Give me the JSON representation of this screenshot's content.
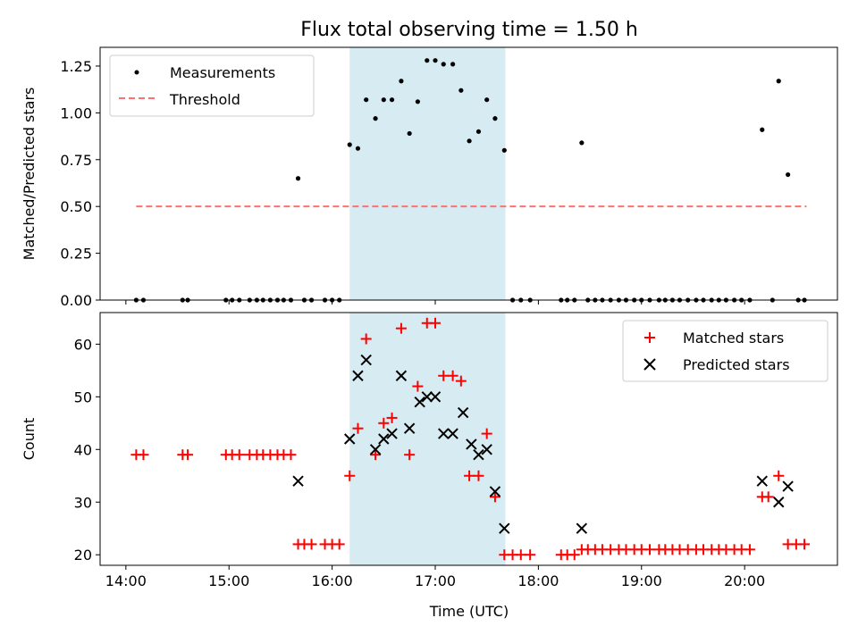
{
  "chart_data": {
    "title": "Flux total observing time = 1.50 h",
    "xlabel": "Time (UTC)",
    "xlim": [
      13.75,
      20.9
    ],
    "xticks": [
      14,
      15,
      16,
      17,
      18,
      19,
      20
    ],
    "xtick_labels": [
      "14:00",
      "15:00",
      "16:00",
      "17:00",
      "18:00",
      "19:00",
      "20:00"
    ],
    "highlight_span": [
      16.17,
      17.68
    ],
    "charts": [
      {
        "type": "scatter",
        "ylabel": "Matched/Predicted stars",
        "ylim": [
          0,
          1.35
        ],
        "yticks": [
          0.0,
          0.25,
          0.5,
          0.75,
          1.0,
          1.25
        ],
        "ytick_labels": [
          "0.00",
          "0.25",
          "0.50",
          "0.75",
          "1.00",
          "1.25"
        ],
        "legend": {
          "position": "top-left",
          "entries": [
            "Measurements",
            "Threshold"
          ]
        },
        "threshold": {
          "name": "Threshold",
          "value": 0.5,
          "x_range": [
            14.1,
            20.6
          ],
          "color": "#ff7070"
        },
        "series": [
          {
            "name": "Measurements",
            "color": "#000000",
            "x": [
              14.1,
              14.17,
              14.55,
              14.6,
              14.97,
              15.03,
              15.1,
              15.2,
              15.27,
              15.33,
              15.4,
              15.47,
              15.53,
              15.6,
              15.67,
              15.73,
              15.8,
              15.93,
              16.0,
              16.07,
              16.17,
              16.25,
              16.33,
              16.42,
              16.5,
              16.58,
              16.67,
              16.75,
              16.83,
              16.92,
              17.0,
              17.08,
              17.17,
              17.25,
              17.33,
              17.42,
              17.5,
              17.58,
              17.67,
              17.75,
              17.83,
              17.92,
              18.22,
              18.28,
              18.35,
              18.42,
              18.48,
              18.55,
              18.62,
              18.7,
              18.78,
              18.85,
              18.93,
              19.0,
              19.08,
              19.17,
              19.23,
              19.3,
              19.37,
              19.45,
              19.53,
              19.6,
              19.68,
              19.75,
              19.82,
              19.9,
              19.97,
              20.05,
              20.17,
              20.27,
              20.33,
              20.42,
              20.52,
              20.58
            ],
            "y": [
              0,
              0,
              0,
              0,
              0,
              0,
              0,
              0,
              0,
              0,
              0,
              0,
              0,
              0,
              0.65,
              0,
              0,
              0,
              0,
              0,
              0.83,
              0.81,
              1.07,
              0.97,
              1.07,
              1.07,
              1.17,
              0.89,
              1.06,
              1.28,
              1.28,
              1.26,
              1.26,
              1.12,
              0.85,
              0.9,
              1.07,
              0.97,
              0.8,
              0,
              0,
              0,
              0,
              0,
              0,
              0.84,
              0,
              0,
              0,
              0,
              0,
              0,
              0,
              0,
              0,
              0,
              0,
              0,
              0,
              0,
              0,
              0,
              0,
              0,
              0,
              0,
              0,
              0,
              0.91,
              0,
              1.17,
              0.67,
              0,
              0
            ]
          }
        ]
      },
      {
        "type": "scatter",
        "ylabel": "Count",
        "ylim": [
          18,
          66
        ],
        "yticks": [
          20,
          30,
          40,
          50,
          60
        ],
        "ytick_labels": [
          "20",
          "30",
          "40",
          "50",
          "60"
        ],
        "legend": {
          "position": "top-right",
          "entries": [
            "Matched stars",
            "Predicted stars"
          ]
        },
        "series": [
          {
            "name": "Matched stars",
            "marker": "plus",
            "color": "#ff0000",
            "x": [
              14.1,
              14.17,
              14.55,
              14.6,
              14.97,
              15.03,
              15.1,
              15.2,
              15.27,
              15.33,
              15.4,
              15.47,
              15.53,
              15.6,
              15.67,
              15.73,
              15.8,
              15.93,
              16.0,
              16.07,
              16.17,
              16.25,
              16.33,
              16.42,
              16.5,
              16.58,
              16.67,
              16.75,
              16.83,
              16.92,
              17.0,
              17.08,
              17.17,
              17.25,
              17.33,
              17.42,
              17.5,
              17.58,
              17.67,
              17.75,
              17.83,
              17.92,
              18.22,
              18.28,
              18.35,
              18.42,
              18.48,
              18.55,
              18.62,
              18.7,
              18.78,
              18.85,
              18.93,
              19.0,
              19.08,
              19.17,
              19.23,
              19.3,
              19.37,
              19.45,
              19.53,
              19.6,
              19.68,
              19.75,
              19.82,
              19.9,
              19.97,
              20.05,
              20.17,
              20.23,
              20.33,
              20.42,
              20.5,
              20.58
            ],
            "y": [
              39,
              39,
              39,
              39,
              39,
              39,
              39,
              39,
              39,
              39,
              39,
              39,
              39,
              39,
              22,
              22,
              22,
              22,
              22,
              22,
              35,
              44,
              61,
              39,
              45,
              46,
              63,
              39,
              52,
              64,
              64,
              54,
              54,
              53,
              35,
              35,
              43,
              31,
              20,
              20,
              20,
              20,
              20,
              20,
              20,
              21,
              21,
              21,
              21,
              21,
              21,
              21,
              21,
              21,
              21,
              21,
              21,
              21,
              21,
              21,
              21,
              21,
              21,
              21,
              21,
              21,
              21,
              21,
              31,
              31,
              35,
              22,
              22,
              22
            ]
          },
          {
            "name": "Predicted stars",
            "marker": "x",
            "color": "#000000",
            "x": [
              15.67,
              16.17,
              16.25,
              16.33,
              16.42,
              16.5,
              16.58,
              16.67,
              16.75,
              16.85,
              16.92,
              17.0,
              17.08,
              17.17,
              17.27,
              17.35,
              17.42,
              17.5,
              17.58,
              17.67,
              18.42,
              20.17,
              20.33,
              20.42
            ],
            "y": [
              34,
              42,
              54,
              57,
              40,
              42,
              43,
              54,
              44,
              49,
              50,
              50,
              43,
              43,
              47,
              41,
              39,
              40,
              32,
              25,
              25,
              34,
              30,
              33
            ]
          }
        ]
      }
    ]
  }
}
